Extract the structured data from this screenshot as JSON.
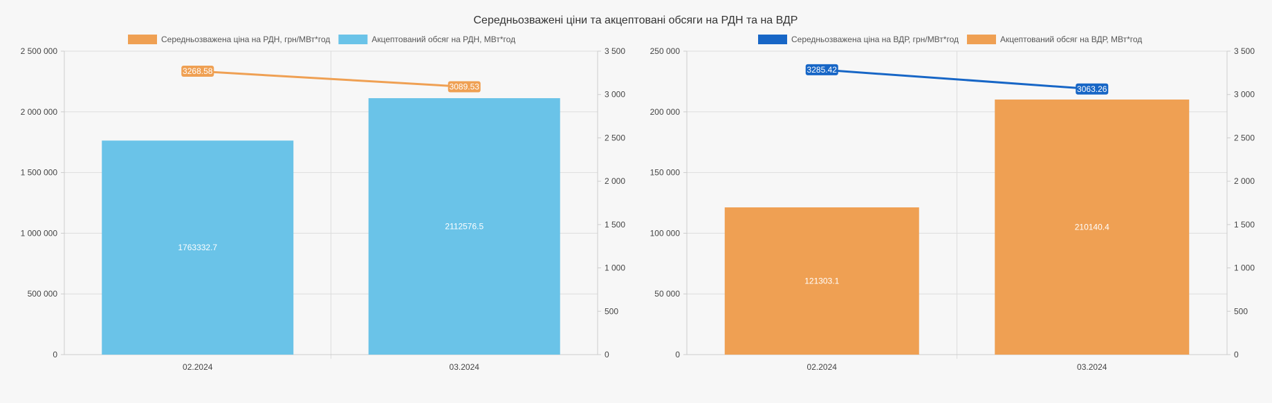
{
  "title": "Середньозважені ціни та акцептовані обсяги на РДН та на ВДР",
  "colors": {
    "orange": "#efa053",
    "light_blue": "#6ac3e8",
    "blue": "#1766c6",
    "grid": "#dddddd",
    "axis": "#cccccc",
    "background": "#f7f7f7"
  },
  "chart_data": [
    {
      "type": "bar",
      "categories": [
        "02.2024",
        "03.2024"
      ],
      "series": [
        {
          "name": "Середньозважена ціна на РДН, грн/МВт*год",
          "kind": "line",
          "axis": "right",
          "color": "#efa053",
          "values": [
            3268.58,
            3089.53
          ],
          "labels": [
            "3268.58",
            "3089.53"
          ]
        },
        {
          "name": "Акцептований обсяг на РДН, МВт*год",
          "kind": "bar",
          "axis": "left",
          "color": "#6ac3e8",
          "values": [
            1763332.7,
            2112576.5
          ],
          "labels": [
            "1763332.7",
            "2112576.5"
          ]
        }
      ],
      "y_left": {
        "ylim": [
          0,
          2500000
        ],
        "ticks": [
          0,
          500000,
          1000000,
          1500000,
          2000000,
          2500000
        ],
        "tick_labels": [
          "0",
          "500 000",
          "1 000 000",
          "1 500 000",
          "2 000 000",
          "2 500 000"
        ]
      },
      "y_right": {
        "ylim": [
          0,
          3500
        ],
        "ticks": [
          0,
          500,
          1000,
          1500,
          2000,
          2500,
          3000,
          3500
        ],
        "tick_labels": [
          "0",
          "500",
          "1 000",
          "1 500",
          "2 000",
          "2 500",
          "3 000",
          "3 500"
        ]
      },
      "grid": true,
      "legend_position": "top"
    },
    {
      "type": "bar",
      "categories": [
        "02.2024",
        "03.2024"
      ],
      "series": [
        {
          "name": "Середньозважена ціна на ВДР, грн/МВт*год",
          "kind": "line",
          "axis": "right",
          "color": "#1766c6",
          "values": [
            3285.42,
            3063.26
          ],
          "labels": [
            "3285.42",
            "3063.26"
          ]
        },
        {
          "name": "Акцептований обсяг на ВДР, МВт*год",
          "kind": "bar",
          "axis": "left",
          "color": "#efa053",
          "values": [
            121303.1,
            210140.4
          ],
          "labels": [
            "121303.1",
            "210140.4"
          ]
        }
      ],
      "y_left": {
        "ylim": [
          0,
          250000
        ],
        "ticks": [
          0,
          50000,
          100000,
          150000,
          200000,
          250000
        ],
        "tick_labels": [
          "0",
          "50 000",
          "100 000",
          "150 000",
          "200 000",
          "250 000"
        ]
      },
      "y_right": {
        "ylim": [
          0,
          3500
        ],
        "ticks": [
          0,
          500,
          1000,
          1500,
          2000,
          2500,
          3000,
          3500
        ],
        "tick_labels": [
          "0",
          "500",
          "1 000",
          "1 500",
          "2 000",
          "2 500",
          "3 000",
          "3 500"
        ]
      },
      "grid": true,
      "legend_position": "top"
    }
  ]
}
